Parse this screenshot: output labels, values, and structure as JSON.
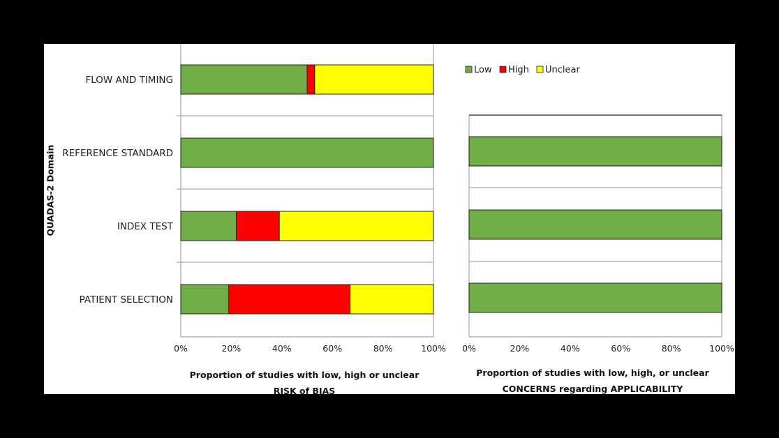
{
  "chart_data": [
    {
      "type": "bar",
      "orientation": "horizontal",
      "stacked": true,
      "categories": [
        "FLOW AND TIMING",
        "REFERENCE STANDARD",
        "INDEX TEST",
        "PATIENT SELECTION"
      ],
      "series": [
        {
          "name": "Low",
          "color": "#70ad47",
          "values": [
            50,
            100,
            22,
            19
          ]
        },
        {
          "name": "High",
          "color": "#ff0000",
          "values": [
            3,
            0,
            17,
            48
          ]
        },
        {
          "name": "Unclear",
          "color": "#ffff00",
          "values": [
            47,
            0,
            61,
            33
          ]
        }
      ],
      "xlim": [
        0,
        100
      ],
      "xticks": [
        "0%",
        "20%",
        "40%",
        "60%",
        "80%",
        "100%"
      ],
      "ylabel": "QUADAS-2 Domain",
      "xlabel": [
        "Proportion of studies with low, high or unclear",
        "RISK of BIAS"
      ]
    },
    {
      "type": "bar",
      "orientation": "horizontal",
      "stacked": true,
      "categories": [
        "REFERENCE STANDARD",
        "INDEX TEST",
        "PATIENT SELECTION"
      ],
      "series": [
        {
          "name": "Low",
          "color": "#70ad47",
          "values": [
            100,
            100,
            100
          ]
        },
        {
          "name": "High",
          "color": "#ff0000",
          "values": [
            0,
            0,
            0
          ]
        },
        {
          "name": "Unclear",
          "color": "#ffff00",
          "values": [
            0,
            0,
            0
          ]
        }
      ],
      "xlim": [
        0,
        100
      ],
      "xticks": [
        "0%",
        "20%",
        "40%",
        "60%",
        "80%",
        "100%"
      ],
      "legend": {
        "position": "top-left",
        "entries": [
          "Low",
          "High",
          "Unclear"
        ]
      },
      "xlabel": [
        "Proportion of studies with low, high, or unclear",
        "CONCERNS  regarding APPLICABILITY"
      ]
    }
  ]
}
